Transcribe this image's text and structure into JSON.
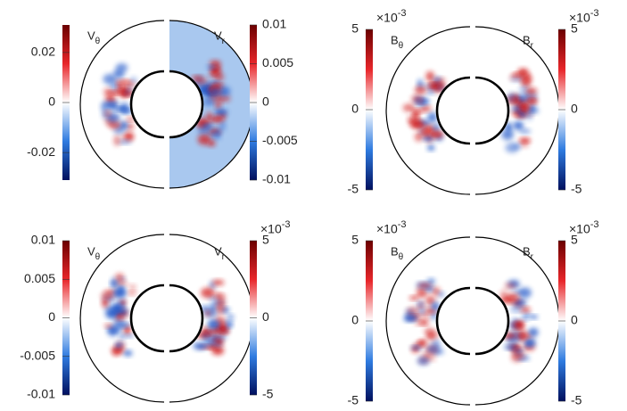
{
  "chart_data": [
    {
      "type": "half-disk-map",
      "left": {
        "label": "V",
        "subscript": "θ",
        "clim": [
          -0.031,
          0.031
        ],
        "ticks": [
          0.02,
          0,
          -0.02
        ]
      },
      "right": {
        "label": "V",
        "subscript": "r",
        "clim": [
          -0.01,
          0.01
        ],
        "ticks": [
          0.01,
          0.005,
          0,
          -0.005,
          -0.01
        ]
      }
    },
    {
      "type": "half-disk-map",
      "left": {
        "label": "B",
        "subscript": "θ",
        "clim": [
          -5,
          5
        ],
        "ticks": [
          5,
          0,
          -5
        ],
        "scale_base": "×10",
        "scale_exponent": "-3"
      },
      "right": {
        "label": "B",
        "subscript": "r",
        "clim": [
          -5,
          5
        ],
        "ticks": [
          5,
          0,
          -5
        ],
        "scale_base": "×10",
        "scale_exponent": "-3"
      }
    },
    {
      "type": "half-disk-map",
      "left": {
        "label": "V",
        "subscript": "θ",
        "clim": [
          -0.01,
          0.01
        ],
        "ticks": [
          0.01,
          0.005,
          0,
          -0.005,
          -0.01
        ]
      },
      "right": {
        "label": "V",
        "subscript": "r",
        "clim": [
          -5,
          5
        ],
        "ticks": [
          5,
          0,
          -5
        ],
        "scale_base": "×10",
        "scale_exponent": "-3"
      }
    },
    {
      "type": "half-disk-map",
      "left": {
        "label": "B",
        "subscript": "θ",
        "clim": [
          -5,
          5
        ],
        "ticks": [
          5,
          0,
          -5
        ],
        "scale_base": "×10",
        "scale_exponent": "-3"
      },
      "right": {
        "label": "B",
        "subscript": "r",
        "clim": [
          -5,
          5
        ],
        "ticks": [
          5,
          0,
          -5
        ],
        "scale_base": "×10",
        "scale_exponent": "-3"
      }
    }
  ]
}
